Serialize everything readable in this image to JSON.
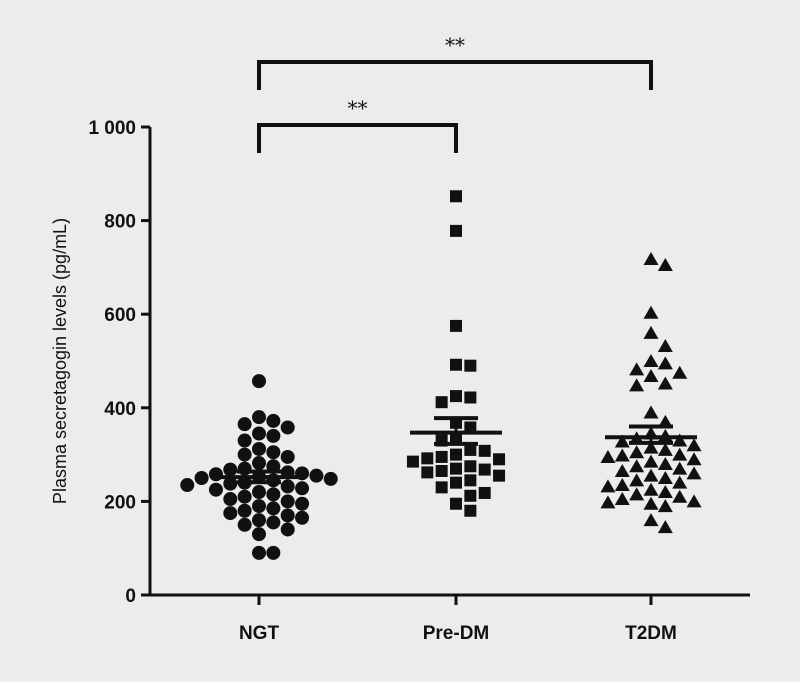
{
  "chart_data": {
    "type": "scatter",
    "title": "",
    "xlabel": "",
    "ylabel": "Plasma secretagogin levels (pg/mL)",
    "ylim": [
      0,
      1000
    ],
    "yticks": [
      0,
      200,
      400,
      600,
      800,
      1000
    ],
    "ytick_labels": [
      "0",
      "200",
      "400",
      "600",
      "800",
      "1 000"
    ],
    "categories": [
      "NGT",
      "Pre-DM",
      "T2DM"
    ],
    "grid": false,
    "series": [
      {
        "category": "NGT",
        "marker": "circle",
        "mean": 252,
        "sem_upper": 264,
        "sem_lower": 241,
        "values": [
          457,
          380,
          372,
          365,
          358,
          345,
          340,
          330,
          312,
          305,
          300,
          295,
          282,
          275,
          270,
          268,
          262,
          260,
          258,
          255,
          252,
          250,
          248,
          245,
          240,
          238,
          235,
          232,
          228,
          225,
          220,
          215,
          210,
          205,
          200,
          195,
          190,
          185,
          180,
          175,
          170,
          165,
          160,
          155,
          150,
          140,
          130,
          90,
          90
        ]
      },
      {
        "category": "Pre-DM",
        "marker": "square",
        "mean": 347,
        "sem_upper": 378,
        "sem_lower": 323,
        "values": [
          852,
          778,
          575,
          492,
          490,
          425,
          422,
          412,
          368,
          358,
          335,
          330,
          310,
          308,
          300,
          295,
          292,
          290,
          285,
          275,
          270,
          268,
          265,
          262,
          255,
          245,
          240,
          230,
          218,
          212,
          195,
          180
        ]
      },
      {
        "category": "T2DM",
        "marker": "triangle",
        "mean": 337,
        "sem_upper": 360,
        "sem_lower": 325,
        "values": [
          718,
          705,
          603,
          560,
          532,
          500,
          495,
          482,
          475,
          468,
          452,
          448,
          390,
          370,
          345,
          340,
          335,
          330,
          328,
          320,
          315,
          310,
          305,
          300,
          298,
          295,
          290,
          285,
          280,
          275,
          270,
          265,
          260,
          255,
          250,
          245,
          240,
          235,
          232,
          225,
          220,
          215,
          210,
          205,
          200,
          198,
          195,
          190,
          160,
          145
        ]
      }
    ],
    "significance": [
      {
        "from": "NGT",
        "to": "T2DM",
        "label": "**"
      },
      {
        "from": "NGT",
        "to": "Pre-DM",
        "label": "**"
      }
    ]
  }
}
